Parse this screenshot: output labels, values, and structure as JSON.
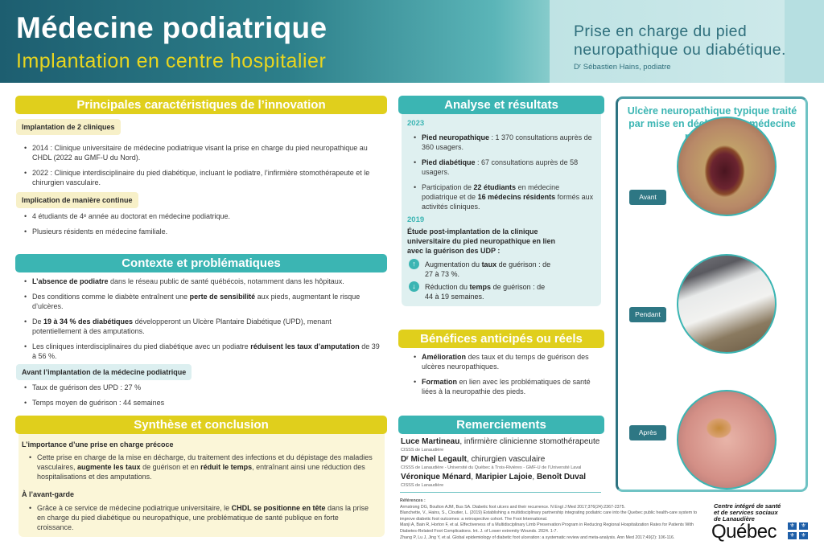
{
  "header": {
    "title": "Médecine podiatrique",
    "subtitle": "Implantation en centre hospitalier",
    "topic_line1": "Prise en charge du pied",
    "topic_line2": "neuropathique ou diabétique.",
    "author": "Dʳ Sébastien Hains, podiatre"
  },
  "colors": {
    "yellow": "#e0cf1c",
    "teal": "#3bb5b3",
    "dark_teal": "#1d5e70"
  },
  "innovation": {
    "heading": "Principales caractéristiques de l’innovation",
    "sub1": "Implantation de 2 cliniques",
    "items1": [
      [
        {
          "t": "2014 : Clinique universitaire de médecine podiatrique visant la prise en charge du pied neuropathique au CHDL (2022 au GMF-U du Nord)."
        }
      ],
      [
        {
          "t": "2022 : Clinique interdisciplinaire du pied diabétique, incluant le podiatre, l’infirmière stomothérapeute et le chirurgien vasculaire."
        }
      ]
    ],
    "sub2": "Implication de manière continue",
    "items2": [
      [
        {
          "t": "4 étudiants de 4ᵉ année au doctorat en médecine podiatrique."
        }
      ],
      [
        {
          "t": "Plusieurs résidents en médecine familiale."
        }
      ]
    ]
  },
  "context": {
    "heading": "Contexte et problématiques",
    "items": [
      [
        {
          "t": "L’absence de podiatre",
          "b": true
        },
        {
          "t": " dans le réseau public de santé québécois, notamment dans les hôpitaux."
        }
      ],
      [
        {
          "t": "Des conditions comme le diabète entraînent une "
        },
        {
          "t": "perte de sensibilité",
          "b": true
        },
        {
          "t": " aux pieds, augmentant le risque d’ulcères."
        }
      ],
      [
        {
          "t": "De "
        },
        {
          "t": "19 à 34 % des diabétiques",
          "b": true
        },
        {
          "t": " développeront un Ulcère Plantaire Diabétique (UPD), menant potentiellement à des amputations."
        }
      ],
      [
        {
          "t": "Les cliniques interdisciplinaires du pied diabétique avec un podiatre "
        },
        {
          "t": "réduisent les taux d’amputation",
          "b": true
        },
        {
          "t": " de 39 à 56 %."
        }
      ]
    ],
    "sub": "Avant l’implantation de la médecine podiatrique",
    "before": [
      [
        {
          "t": "Taux de guérison des UPD : 27 %"
        }
      ],
      [
        {
          "t": "Temps moyen de guérison : 44 semaines"
        }
      ]
    ]
  },
  "synthesis": {
    "heading": "Synthèse et conclusion",
    "sub1": "L’importance d’une prise en charge précoce",
    "items1": [
      [
        {
          "t": "Cette prise en charge de la mise en décharge, du traitement des infections et du dépistage des maladies vasculaires, "
        },
        {
          "t": "augmente les taux",
          "b": true
        },
        {
          "t": " de guérison et en "
        },
        {
          "t": "réduit le temps",
          "b": true
        },
        {
          "t": ", entraînant ainsi une réduction des hospitalisations et des amputations."
        }
      ]
    ],
    "sub2": "À l’avant-garde",
    "items2": [
      [
        {
          "t": "Grâce à ce service de médecine podiatrique universitaire, le "
        },
        {
          "t": "CHDL se positionne en tête",
          "b": true
        },
        {
          "t": " dans la prise en charge du pied diabétique ou neuropathique, une problématique de santé publique en forte croissance."
        }
      ]
    ]
  },
  "analysis": {
    "heading": "Analyse et résultats",
    "year1": "2023",
    "items": [
      [
        {
          "t": "Pied neuropathique",
          "b": true
        },
        {
          "t": " : 1 370 consultations auprès de 360 usagers."
        }
      ],
      [
        {
          "t": "Pied diabétique",
          "b": true
        },
        {
          "t": " : 67 consultations auprès de 58 usagers."
        }
      ],
      [
        {
          "t": "Participation de "
        },
        {
          "t": "22 étudiants",
          "b": true
        },
        {
          "t": " en médecine podiatrique et de "
        },
        {
          "t": "16 médecins résidents",
          "b": true
        },
        {
          "t": " formés aux activités cliniques."
        }
      ]
    ],
    "year2": "2019",
    "study": "Étude post-implantation de la clinique universitaire du pied neuropathique en lien avec la guérison des UDP :",
    "up": [
      {
        "t": "Augmentation du "
      },
      {
        "t": "taux",
        "b": true
      },
      {
        "t": " de guérison : de 27 à 73 %."
      }
    ],
    "down": [
      {
        "t": "Réduction du "
      },
      {
        "t": "temps",
        "b": true
      },
      {
        "t": " de guérison : de 44 à 19 semaines."
      }
    ]
  },
  "benefits": {
    "heading": "Bénéfices anticipés ou réels",
    "items": [
      [
        {
          "t": "Amélioration",
          "b": true
        },
        {
          "t": " des taux et du temps de guérison des ulcères neuropathiques."
        }
      ],
      [
        {
          "t": "Formation",
          "b": true
        },
        {
          "t": " en lien avec les problématiques de santé liées à la neuropathie des pieds."
        }
      ]
    ]
  },
  "thanks": {
    "heading": "Remerciements",
    "p1": [
      {
        "t": "Luce Martineau",
        "b": true
      },
      {
        "t": ", infirmière clinicienne stomothérapeute"
      }
    ],
    "o1": "CISSS de Lanaudière",
    "p2": [
      {
        "t": "Dʳ Michel Legault",
        "b": true
      },
      {
        "t": ", chirurgien vasculaire"
      }
    ],
    "o2": "CISSS de Lanaudière - Université du Québec à Trois-Rivières - GMF-U de l’Université Laval",
    "p3": [
      {
        "t": "Véronique Ménard",
        "b": true
      },
      {
        "t": ", "
      },
      {
        "t": "Maripier Lajoie",
        "b": true
      },
      {
        "t": ", "
      },
      {
        "t": "Benoît Duval",
        "b": true
      }
    ],
    "o3": "CISSS de Lanaudière"
  },
  "references": {
    "label": "Références :",
    "items": [
      "Armstrong DG, Boulton AJM, Bus SA. Diabetic foot ulcers and their recurrence. N Engl J Med 2017;376(24):2367-2375.",
      "Blanchette, V., Hains, S., Cloutier, L. (2019) Establishing a multidisciplinary partnership integrating podiatric care into the Quebec public health-care system to improve diabetic foot outcomes: a retrospective cohort. The Foot International.",
      "Manji A, Bain R, Horton F, et al. Effectiveness of a Multidisciplinary Limb Preservation Program in Reducing Regional Hospitalization Rates for Patients With Diabetes-Related Foot Complications. Int. J. of Lower extremity Wounds. 2024. 1-7.",
      "Zhang P, Lu J, Jing Y, et al. Global epidemiology of diabetic foot ulceration: a systematic review and meta-analysis. Ann Med 2017;49(2): 106-116."
    ]
  },
  "gallery": {
    "title": "Ulcère neuropathique typique traité par mise en décharge en médecine podiatrique",
    "labels": [
      "Avant",
      "Pendant",
      "Après"
    ]
  },
  "logo": {
    "text": "Centre intégré de santé et de services sociaux de Lanaudière",
    "wordmark": "Québec"
  }
}
